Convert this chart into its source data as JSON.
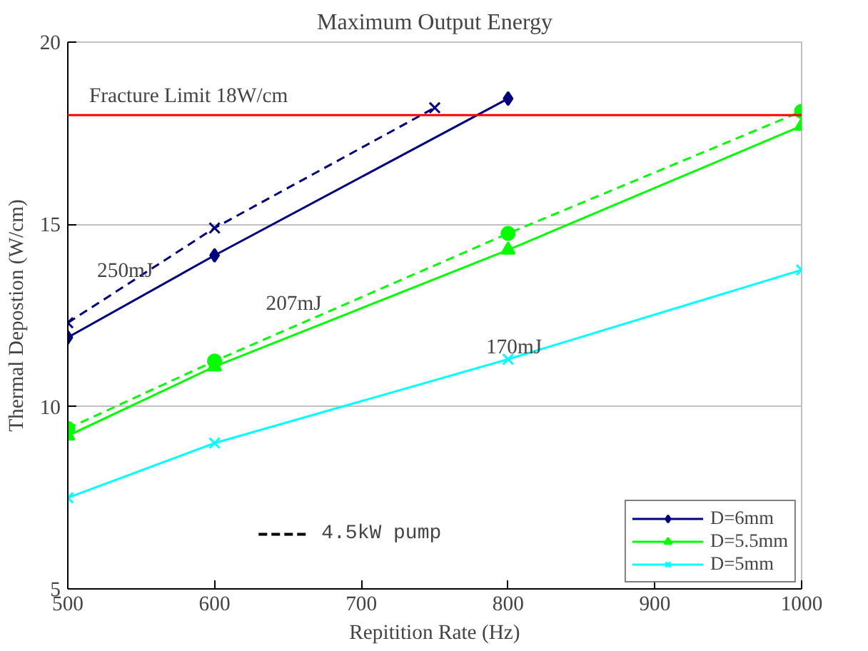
{
  "chart_data": {
    "type": "line",
    "title": "Maximum Output Energy",
    "xlabel": "Repitition Rate (Hz)",
    "ylabel": "Thermal Depostion (W/cm)",
    "xlim": [
      500,
      1000
    ],
    "xticks": [
      500,
      600,
      700,
      800,
      900,
      1000
    ],
    "ylim": [
      5,
      20
    ],
    "yticks": [
      5,
      10,
      15,
      20
    ],
    "grid": "y",
    "legend": "bottom right",
    "series": [
      {
        "name": "D=6mm",
        "color": "#000080",
        "x": [
          500,
          600,
          800
        ],
        "values": [
          11.9,
          14.15,
          18.45
        ],
        "marker": "diamond",
        "line_style": "solid"
      },
      {
        "name": "D=5.5mm",
        "color": "#00ff00",
        "x": [
          500,
          600,
          800,
          1000
        ],
        "values": [
          9.2,
          11.1,
          14.3,
          17.7
        ],
        "marker": "triangle",
        "line_style": "solid"
      },
      {
        "name": "D=5mm",
        "color": "#00ffff",
        "x": [
          500,
          600,
          800,
          1000
        ],
        "values": [
          7.5,
          9.0,
          11.3,
          13.75
        ],
        "marker": "cross",
        "line_style": "solid"
      },
      {
        "color": "#000080",
        "x": [
          500,
          600,
          750
        ],
        "values": [
          12.3,
          14.9,
          18.2
        ],
        "marker": "cross",
        "line_style": "dashed"
      },
      {
        "color": "#00ff00",
        "x": [
          500,
          600,
          800,
          1000
        ],
        "values": [
          9.4,
          11.25,
          14.75,
          18.1
        ],
        "marker": "circle",
        "line_style": "dashed"
      }
    ],
    "ref_lines": [
      {
        "axis": "y",
        "value": 18,
        "label": "Fracture Limit 18W/cm",
        "color": "#ff0000"
      }
    ],
    "annotations": [
      "250mJ",
      "207mJ",
      "170mJ",
      "4.5kW pump"
    ]
  }
}
